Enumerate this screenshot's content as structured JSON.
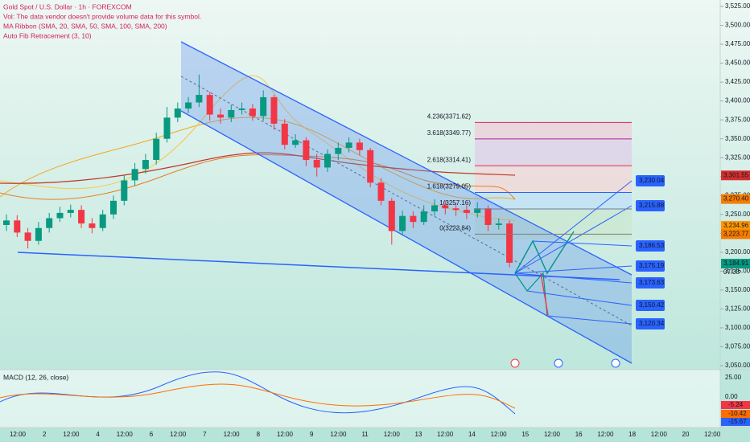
{
  "legend": {
    "symbol": "Gold Spot / U.S. Dollar · 1h · FOREXCOM",
    "volume": "Vol: The data vendor doesn't provide volume data for this symbol.",
    "ma_ribbon": "MA Ribbon (SMA, 20, SMA, 50, SMA, 100, SMA, 200)",
    "fib": "Auto Fib Retracement (3, 10)"
  },
  "price_axis": {
    "ylim": [
      3050,
      3525
    ],
    "ticks": [
      {
        "value": 3525,
        "label": "3,525.00"
      },
      {
        "value": 3500,
        "label": "3,500.00"
      },
      {
        "value": 3475,
        "label": "3,475.00"
      },
      {
        "value": 3450,
        "label": "3,450.00"
      },
      {
        "value": 3425,
        "label": "3,425.00"
      },
      {
        "value": 3400,
        "label": "3,400.00"
      },
      {
        "value": 3375,
        "label": "3,375.00"
      },
      {
        "value": 3350,
        "label": "3,350.00"
      },
      {
        "value": 3325,
        "label": "3,325.00"
      },
      {
        "value": 3300,
        "label": "3,300.00"
      },
      {
        "value": 3275,
        "label": "3,275.00"
      },
      {
        "value": 3250,
        "label": "3,250.00"
      },
      {
        "value": 3225,
        "label": "3,225.00"
      },
      {
        "value": 3200,
        "label": "3,200.00"
      },
      {
        "value": 3175,
        "label": "3,175.00"
      },
      {
        "value": 3150,
        "label": "3,150.00"
      },
      {
        "value": 3125,
        "label": "3,125.00"
      },
      {
        "value": 3100,
        "label": "3,100.00"
      },
      {
        "value": 3075,
        "label": "3,075.00"
      },
      {
        "value": 3050,
        "label": "3,050.00"
      }
    ]
  },
  "time_axis": [
    "12:00",
    "2",
    "12:00",
    "4",
    "12:00",
    "6",
    "12:00",
    "7",
    "12:00",
    "8",
    "12:00",
    "9",
    "12:00",
    "11",
    "12:00",
    "13",
    "12:00",
    "14",
    "12:00",
    "15",
    "12:00",
    "16",
    "12:00",
    "18",
    "12:00",
    "20",
    "12:00"
  ],
  "candles": {
    "up_color": "#089981",
    "down_color": "#f23645",
    "open": [
      3236,
      3242,
      3226,
      3215,
      3232,
      3245,
      3252,
      3256,
      3238,
      3232,
      3250,
      3268,
      3295,
      3310,
      3322,
      3350,
      3378,
      3390,
      3398,
      3408,
      3382,
      3378,
      3388,
      3390,
      3380,
      3405,
      3370,
      3342,
      3348,
      3322,
      3312,
      3330,
      3338,
      3345,
      3335,
      3292,
      3268,
      3228,
      3248,
      3240,
      3254,
      3262,
      3258,
      3256,
      3252,
      3258,
      3236,
      3238
    ],
    "high": [
      3250,
      3249,
      3232,
      3240,
      3252,
      3260,
      3263,
      3262,
      3245,
      3256,
      3275,
      3302,
      3318,
      3330,
      3358,
      3392,
      3398,
      3405,
      3435,
      3412,
      3390,
      3395,
      3398,
      3396,
      3414,
      3408,
      3376,
      3356,
      3352,
      3330,
      3336,
      3345,
      3352,
      3350,
      3338,
      3298,
      3272,
      3255,
      3254,
      3262,
      3270,
      3268,
      3265,
      3262,
      3266,
      3262,
      3245,
      3242
    ],
    "low": [
      3228,
      3220,
      3205,
      3210,
      3226,
      3240,
      3246,
      3232,
      3225,
      3228,
      3244,
      3262,
      3288,
      3304,
      3316,
      3345,
      3372,
      3384,
      3392,
      3374,
      3370,
      3372,
      3382,
      3374,
      3374,
      3362,
      3336,
      3338,
      3314,
      3300,
      3306,
      3322,
      3332,
      3328,
      3286,
      3262,
      3210,
      3222,
      3232,
      3236,
      3248,
      3250,
      3248,
      3244,
      3246,
      3228,
      3230,
      3180
    ],
    "close": [
      3242,
      3226,
      3215,
      3232,
      3245,
      3252,
      3256,
      3238,
      3232,
      3250,
      3268,
      3295,
      3310,
      3322,
      3350,
      3378,
      3390,
      3398,
      3408,
      3382,
      3378,
      3388,
      3390,
      3380,
      3405,
      3370,
      3342,
      3348,
      3322,
      3312,
      3330,
      3338,
      3345,
      3335,
      3292,
      3268,
      3228,
      3248,
      3240,
      3254,
      3262,
      3258,
      3256,
      3252,
      3258,
      3236,
      3238,
      3186
    ]
  },
  "fib_levels": [
    {
      "label": "4.236(3371.62)",
      "value": 3371.62,
      "color": "#e91e63"
    },
    {
      "label": "3.618(3349.77)",
      "value": 3349.77,
      "color": "#9c27b0"
    },
    {
      "label": "2.618(3314.41)",
      "value": 3314.41,
      "color": "#f23645"
    },
    {
      "label": "1.618(3279.05)",
      "value": 3279.05,
      "color": "#2962ff"
    },
    {
      "label": "1(3257.16)",
      "value": 3257.16,
      "color": "#787b86"
    },
    {
      "label": "0(3223.84)",
      "value": 3223.84,
      "color": "#787b86"
    }
  ],
  "price_tags": [
    {
      "label": "3,301.55",
      "value": 3301.55,
      "color": "#d32f2f"
    },
    {
      "label": "3,270.40",
      "value": 3270.4,
      "color": "#f57c00"
    },
    {
      "label": "3,234.96",
      "value": 3234.96,
      "color": "#ff9800"
    },
    {
      "label": "3,223.77",
      "value": 3223.77,
      "color": "#f57c00"
    },
    {
      "label": "3,184.91",
      "value": 3184.91,
      "color": "#089981"
    }
  ],
  "countdown": "07:38",
  "projection_tags": [
    "3,230.04",
    "3,215.88",
    "3,186.53",
    "3,175.19",
    "3,173.63",
    "3,150.42",
    "3,120.34"
  ],
  "macd": {
    "title": "MACD (12, 26, close)",
    "axis_label": "25.00",
    "zero_label": "0.00",
    "tags": [
      {
        "label": "-5.24",
        "color": "#f23645"
      },
      {
        "label": "-10.42",
        "color": "#ff6d00"
      },
      {
        "label": "-15.67",
        "color": "#2962ff"
      }
    ]
  }
}
